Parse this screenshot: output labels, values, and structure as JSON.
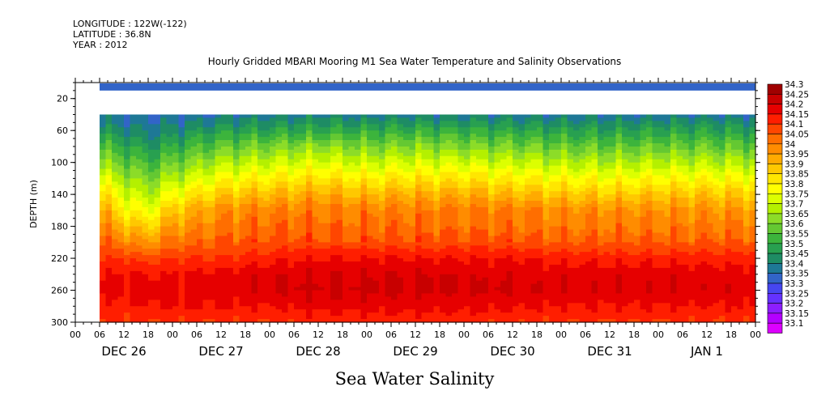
{
  "header": {
    "longitude": "LONGITUDE : 122W(-122)",
    "latitude": "LATITUDE : 36.8N",
    "year": "YEAR : 2012"
  },
  "chart_data": {
    "type": "heatmap",
    "title": "Hourly Gridded MBARI Mooring M1 Sea Water Temperature and Salinity Observations",
    "xlabel": "Sea Water Salinity",
    "ylabel": "DEPTH (m)",
    "x_range_hours": [
      0,
      168
    ],
    "data_start_hour": 6,
    "x_tick_labels": [
      "00",
      "06",
      "12",
      "18",
      "00",
      "06",
      "12",
      "18",
      "00",
      "06",
      "12",
      "18",
      "00",
      "06",
      "12",
      "18",
      "00",
      "06",
      "12",
      "18",
      "00",
      "06",
      "12",
      "18",
      "00",
      "06",
      "12",
      "18",
      "00"
    ],
    "x_day_labels": [
      "DEC 26",
      "DEC 27",
      "DEC 28",
      "DEC 29",
      "DEC 30",
      "DEC 31",
      "JAN  1"
    ],
    "ylim": [
      300,
      0
    ],
    "y_ticks": [
      20,
      60,
      100,
      140,
      180,
      220,
      260,
      300
    ],
    "data_gap_depth_m": [
      10,
      40
    ],
    "surface_band_depth_m": [
      1,
      10
    ],
    "surface_value": 33.35,
    "levels": [
      "34.3",
      "34.25",
      "34.2",
      "34.15",
      "34.1",
      "34.05",
      "34",
      "33.95",
      "33.9",
      "33.85",
      "33.8",
      "33.75",
      "33.7",
      "33.65",
      "33.6",
      "33.55",
      "33.5",
      "33.45",
      "33.4",
      "33.35",
      "33.3",
      "33.25",
      "33.2",
      "33.15",
      "33.1"
    ],
    "colors": [
      "#a00000",
      "#c80000",
      "#e60000",
      "#ff1e00",
      "#ff4600",
      "#ff6e00",
      "#ff8c00",
      "#ffaa00",
      "#ffc800",
      "#ffe600",
      "#ffff00",
      "#dcff00",
      "#b4f000",
      "#8cdc28",
      "#64c832",
      "#3cb43c",
      "#28a050",
      "#1e8c64",
      "#1e7896",
      "#3264c8",
      "#4646f0",
      "#6432ff",
      "#8c1eff",
      "#b400ff",
      "#dc00ff"
    ],
    "profile_depths_m": [
      40,
      60,
      80,
      100,
      120,
      140,
      160,
      180,
      200,
      220,
      240,
      260,
      280,
      300
    ],
    "profiles": [
      {
        "hour": 6,
        "values": [
          33.42,
          33.5,
          33.6,
          33.7,
          33.8,
          33.9,
          34.0,
          34.05,
          34.1,
          34.15,
          34.2,
          34.22,
          34.18,
          34.15
        ]
      },
      {
        "hour": 12,
        "values": [
          33.4,
          33.46,
          33.55,
          33.62,
          33.7,
          33.78,
          33.85,
          33.95,
          34.05,
          34.15,
          34.2,
          34.22,
          34.18,
          34.15
        ]
      },
      {
        "hour": 18,
        "values": [
          33.4,
          33.44,
          33.5,
          33.58,
          33.65,
          33.72,
          33.8,
          33.9,
          34.0,
          34.12,
          34.2,
          34.23,
          34.2,
          34.15
        ]
      },
      {
        "hour": 24,
        "values": [
          33.4,
          33.46,
          33.55,
          33.63,
          33.72,
          33.82,
          33.92,
          34.0,
          34.07,
          34.15,
          34.2,
          34.22,
          34.2,
          34.15
        ]
      },
      {
        "hour": 36,
        "values": [
          33.42,
          33.52,
          33.62,
          33.72,
          33.82,
          33.92,
          34.02,
          34.05,
          34.1,
          34.15,
          34.22,
          34.23,
          34.2,
          34.15
        ]
      },
      {
        "hour": 48,
        "values": [
          33.43,
          33.53,
          33.65,
          33.75,
          33.85,
          33.95,
          34.05,
          34.08,
          34.12,
          34.18,
          34.24,
          34.25,
          34.2,
          34.15
        ]
      },
      {
        "hour": 60,
        "values": [
          33.45,
          33.55,
          33.68,
          33.78,
          33.88,
          33.98,
          34.05,
          34.08,
          34.12,
          34.2,
          34.25,
          34.26,
          34.22,
          34.17
        ]
      },
      {
        "hour": 72,
        "values": [
          33.43,
          33.55,
          33.65,
          33.75,
          33.85,
          33.95,
          34.05,
          34.07,
          34.12,
          34.2,
          34.25,
          34.26,
          34.22,
          34.17
        ]
      },
      {
        "hour": 84,
        "values": [
          33.44,
          33.56,
          33.67,
          33.77,
          33.87,
          33.97,
          34.05,
          34.08,
          34.12,
          34.2,
          34.25,
          34.26,
          34.22,
          34.17
        ]
      },
      {
        "hour": 96,
        "values": [
          33.44,
          33.55,
          33.66,
          33.77,
          33.87,
          33.97,
          34.05,
          34.07,
          34.12,
          34.2,
          34.24,
          34.25,
          34.22,
          34.16
        ]
      },
      {
        "hour": 108,
        "values": [
          33.43,
          33.54,
          33.65,
          33.75,
          33.85,
          33.95,
          34.05,
          34.07,
          34.12,
          34.2,
          34.24,
          34.25,
          34.21,
          34.16
        ]
      },
      {
        "hour": 120,
        "values": [
          33.42,
          33.53,
          33.63,
          33.73,
          33.83,
          33.93,
          34.03,
          34.05,
          34.1,
          34.18,
          34.23,
          34.24,
          34.2,
          34.15
        ]
      },
      {
        "hour": 132,
        "values": [
          33.42,
          33.52,
          33.62,
          33.72,
          33.82,
          33.92,
          34.02,
          34.05,
          34.1,
          34.18,
          34.23,
          34.24,
          34.2,
          34.15
        ]
      },
      {
        "hour": 144,
        "values": [
          33.42,
          33.53,
          33.63,
          33.73,
          33.83,
          33.93,
          34.02,
          34.05,
          34.1,
          34.18,
          34.23,
          34.24,
          34.2,
          34.15
        ]
      },
      {
        "hour": 156,
        "values": [
          33.42,
          33.53,
          33.63,
          33.73,
          33.83,
          33.93,
          34.02,
          34.05,
          34.1,
          34.18,
          34.23,
          34.24,
          34.2,
          34.15
        ]
      },
      {
        "hour": 168,
        "values": [
          33.42,
          33.52,
          33.62,
          33.72,
          33.82,
          33.92,
          34.0,
          34.05,
          34.1,
          34.18,
          34.22,
          34.24,
          34.2,
          34.15
        ]
      }
    ]
  }
}
